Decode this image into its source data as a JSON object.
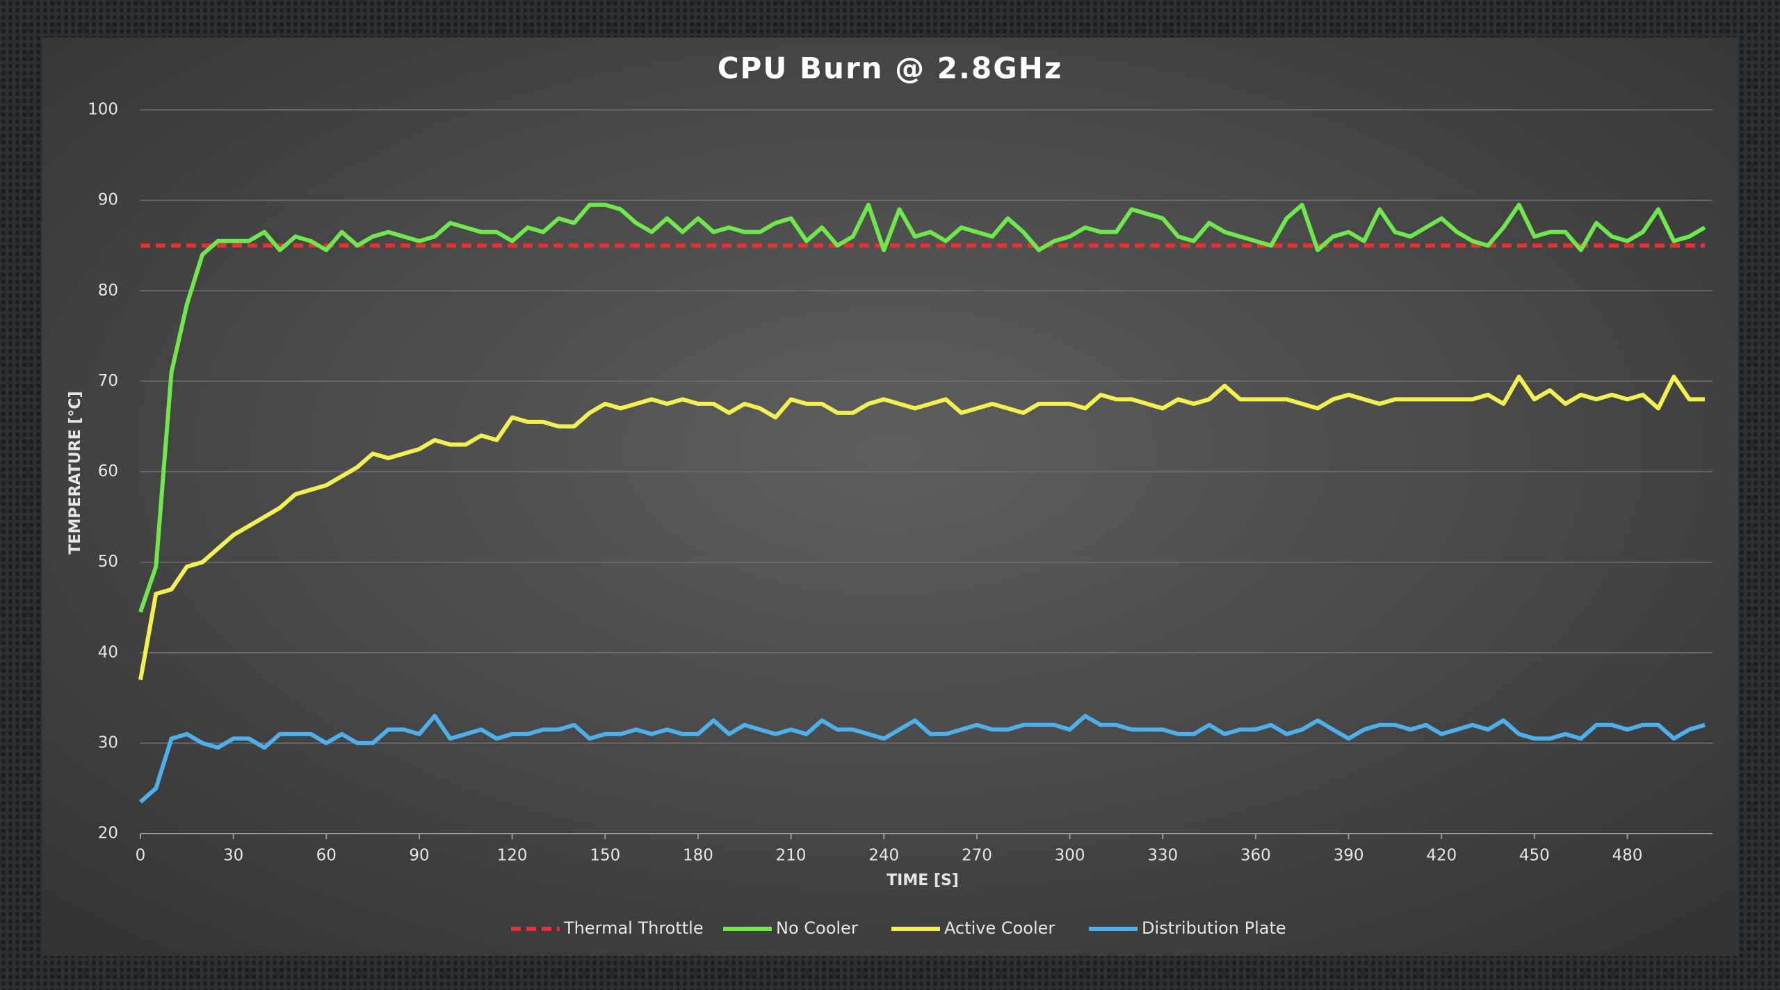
{
  "chart_data": {
    "type": "line",
    "title": "CPU Burn @ 2.8GHz",
    "x_label": "TIME [S]",
    "y_label": "TEMPERATURE [°C]",
    "xlim": [
      0,
      507.5
    ],
    "xticks": [
      0,
      30,
      60,
      90,
      120,
      150,
      180,
      210,
      240,
      270,
      300,
      330,
      360,
      390,
      420,
      450,
      480
    ],
    "ylim": [
      20,
      100
    ],
    "yticks": [
      20,
      30,
      40,
      50,
      60,
      70,
      80,
      90,
      100
    ],
    "grid": true,
    "legend": "bottom",
    "x": [
      0,
      5,
      10,
      15,
      20,
      25,
      30,
      35,
      40,
      45,
      50,
      55,
      60,
      65,
      70,
      75,
      80,
      85,
      90,
      95,
      100,
      105,
      110,
      115,
      120,
      125,
      130,
      135,
      140,
      145,
      150,
      155,
      160,
      165,
      170,
      175,
      180,
      185,
      190,
      195,
      200,
      205,
      210,
      215,
      220,
      225,
      230,
      235,
      240,
      245,
      250,
      255,
      260,
      265,
      270,
      275,
      280,
      285,
      290,
      295,
      300,
      305,
      310,
      315,
      320,
      325,
      330,
      335,
      340,
      345,
      350,
      355,
      360,
      365,
      370,
      375,
      380,
      385,
      390,
      395,
      400,
      405,
      410,
      415,
      420,
      425,
      430,
      435,
      440,
      445,
      450,
      455,
      460,
      465,
      470,
      475,
      480,
      485,
      490,
      495,
      500,
      505
    ],
    "series": [
      {
        "name": "Thermal Throttle",
        "color": "#e8312f",
        "dashed": true,
        "values": [
          85,
          85,
          85,
          85,
          85,
          85,
          85,
          85,
          85,
          85,
          85,
          85,
          85,
          85,
          85,
          85,
          85,
          85,
          85,
          85,
          85,
          85,
          85,
          85,
          85,
          85,
          85,
          85,
          85,
          85,
          85,
          85,
          85,
          85,
          85,
          85,
          85,
          85,
          85,
          85,
          85,
          85,
          85,
          85,
          85,
          85,
          85,
          85,
          85,
          85,
          85,
          85,
          85,
          85,
          85,
          85,
          85,
          85,
          85,
          85,
          85,
          85,
          85,
          85,
          85,
          85,
          85,
          85,
          85,
          85,
          85,
          85,
          85,
          85,
          85,
          85,
          85,
          85,
          85,
          85,
          85,
          85,
          85,
          85,
          85,
          85,
          85,
          85,
          85,
          85,
          85,
          85,
          85,
          85,
          85,
          85,
          85,
          85,
          85,
          85,
          85,
          85
        ]
      },
      {
        "name": "No Cooler",
        "color": "#6ee84c",
        "values": [
          44.5,
          49.5,
          71,
          78.5,
          84,
          85.5,
          85.5,
          85.5,
          86.5,
          84.5,
          86,
          85.5,
          84.5,
          86.5,
          85,
          86,
          86.5,
          86,
          85.5,
          86,
          87.5,
          87,
          86.5,
          86.5,
          85.5,
          87,
          86.5,
          88,
          87.5,
          89.5,
          89.5,
          89,
          87.5,
          86.5,
          88,
          86.5,
          88,
          86.5,
          87,
          86.5,
          86.5,
          87.5,
          88,
          85.5,
          87,
          85,
          86,
          89.5,
          84.5,
          89,
          86,
          86.5,
          85.5,
          87,
          86.5,
          86,
          88,
          86.5,
          84.5,
          85.5,
          86,
          87,
          86.5,
          86.5,
          89,
          88.5,
          88,
          86,
          85.5,
          87.5,
          86.5,
          86,
          85.5,
          85,
          88,
          89.5,
          84.5,
          86,
          86.5,
          85.5,
          89,
          86.5,
          86,
          87,
          88,
          86.5,
          85.5,
          85,
          87,
          89.5,
          86,
          86.5,
          86.5,
          84.5,
          87.5,
          86,
          85.5,
          86.5,
          89,
          85.5,
          86,
          87
        ]
      },
      {
        "name": "Active Cooler",
        "color": "#f4f052",
        "values": [
          37,
          46.5,
          47,
          49.5,
          50,
          51.5,
          53,
          54,
          55,
          56,
          57.5,
          58,
          58.5,
          59.5,
          60.5,
          62,
          61.5,
          62,
          62.5,
          63.5,
          63,
          63,
          64,
          63.5,
          66,
          65.5,
          65.5,
          65,
          65,
          66.5,
          67.5,
          67,
          67.5,
          68,
          67.5,
          68,
          67.5,
          67.5,
          66.5,
          67.5,
          67,
          66,
          68,
          67.5,
          67.5,
          66.5,
          66.5,
          67.5,
          68,
          67.5,
          67,
          67.5,
          68,
          66.5,
          67,
          67.5,
          67,
          66.5,
          67.5,
          67.5,
          67.5,
          67,
          68.5,
          68,
          68,
          67.5,
          67,
          68,
          67.5,
          68,
          69.5,
          68,
          68,
          68,
          68,
          67.5,
          67,
          68,
          68.5,
          68,
          67.5,
          68,
          68,
          68,
          68,
          68,
          68,
          68.5,
          67.5,
          70.5,
          68,
          69,
          67.5,
          68.5,
          68,
          68.5,
          68,
          68.5,
          67,
          70.5,
          68,
          68
        ]
      },
      {
        "name": "Distribution Plate",
        "color": "#4eb0ea",
        "values": [
          23.5,
          25,
          30.5,
          31,
          30,
          29.5,
          30.5,
          30.5,
          29.5,
          31,
          31,
          31,
          30,
          31,
          30,
          30,
          31.5,
          31.5,
          31,
          33,
          30.5,
          31,
          31.5,
          30.5,
          31,
          31,
          31.5,
          31.5,
          32,
          30.5,
          31,
          31,
          31.5,
          31,
          31.5,
          31,
          31,
          32.5,
          31,
          32,
          31.5,
          31,
          31.5,
          31,
          32.5,
          31.5,
          31.5,
          31,
          30.5,
          31.5,
          32.5,
          31,
          31,
          31.5,
          32,
          31.5,
          31.5,
          32,
          32,
          32,
          31.5,
          33,
          32,
          32,
          31.5,
          31.5,
          31.5,
          31,
          31,
          32,
          31,
          31.5,
          31.5,
          32,
          31,
          31.5,
          32.5,
          31.5,
          30.5,
          31.5,
          32,
          32,
          31.5,
          32,
          31,
          31.5,
          32,
          31.5,
          32.5,
          31,
          30.5,
          30.5,
          31,
          30.5,
          32,
          32,
          31.5,
          32,
          32,
          30.5,
          31.5,
          32
        ]
      }
    ]
  }
}
